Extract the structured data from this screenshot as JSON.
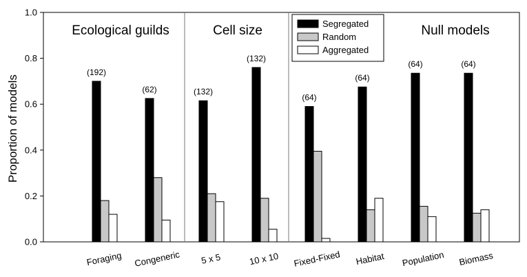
{
  "chart_data": {
    "type": "bar",
    "ylabel": "Proportion of models",
    "ylim": [
      0,
      1.0
    ],
    "yticks": [
      "0.0",
      "0.2",
      "0.4",
      "0.6",
      "0.8",
      "1.0"
    ],
    "categories": [
      "Foraging",
      "Congeneric",
      "5 x 5",
      "10 x 10",
      "Fixed-Fixed",
      "Habitat",
      "Population",
      "Biomass"
    ],
    "sample_sizes": [
      "(192)",
      "(62)",
      "(132)",
      "(132)",
      "(64)",
      "(64)",
      "(64)",
      "(64)"
    ],
    "series": [
      {
        "name": "Segregated",
        "color": "#000000",
        "values": [
          0.7,
          0.625,
          0.615,
          0.76,
          0.59,
          0.675,
          0.735,
          0.735
        ]
      },
      {
        "name": "Random",
        "color": "#c8c8c8",
        "values": [
          0.18,
          0.28,
          0.21,
          0.19,
          0.395,
          0.14,
          0.155,
          0.125
        ]
      },
      {
        "name": "Aggregated",
        "color": "#ffffff",
        "values": [
          0.12,
          0.095,
          0.175,
          0.055,
          0.015,
          0.19,
          0.11,
          0.14
        ]
      }
    ],
    "groups": [
      {
        "label": "Ecological guilds",
        "categories": [
          0,
          1
        ]
      },
      {
        "label": "Cell size",
        "categories": [
          2,
          3
        ]
      },
      {
        "label": "Null models",
        "categories": [
          4,
          5,
          6,
          7
        ]
      }
    ],
    "legend": "top-center"
  }
}
